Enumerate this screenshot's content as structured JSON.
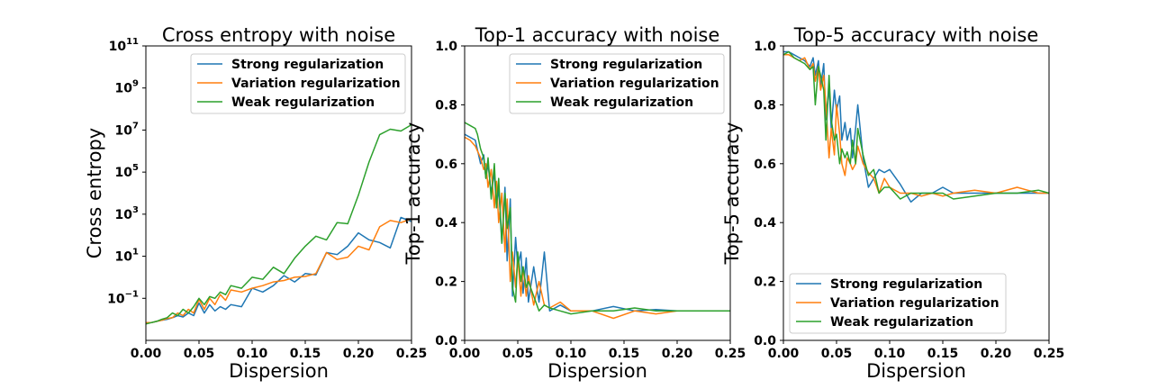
{
  "chart_data": [
    {
      "type": "line",
      "title": "Cross entropy with noise",
      "xlabel": "Dispersion",
      "ylabel": "Cross entropy",
      "xlim": [
        0,
        0.25
      ],
      "ylim": [
        0.001,
        100000000000
      ],
      "yscale": "log",
      "xticks": [
        "0.00",
        "0.05",
        "0.10",
        "0.15",
        "0.20",
        "0.25"
      ],
      "legend_loc": "upper right",
      "grid": false,
      "series": [
        {
          "name": "Strong regularization",
          "color": "#1f77b4",
          "x": [
            0,
            0.005,
            0.01,
            0.015,
            0.02,
            0.025,
            0.03,
            0.035,
            0.04,
            0.045,
            0.05,
            0.055,
            0.06,
            0.065,
            0.07,
            0.075,
            0.08,
            0.09,
            0.1,
            0.11,
            0.12,
            0.13,
            0.14,
            0.15,
            0.16,
            0.17,
            0.18,
            0.19,
            0.2,
            0.21,
            0.22,
            0.23,
            0.24,
            0.25
          ],
          "y": [
            0.007,
            0.007,
            0.008,
            0.009,
            0.01,
            0.012,
            0.015,
            0.013,
            0.02,
            0.015,
            0.06,
            0.02,
            0.05,
            0.025,
            0.04,
            0.03,
            0.05,
            0.04,
            0.3,
            0.2,
            0.4,
            1.2,
            0.6,
            1.5,
            1.3,
            15,
            12,
            30,
            130,
            60,
            45,
            25,
            700,
            450
          ]
        },
        {
          "name": "Variation regularization",
          "color": "#ff7f0e",
          "x": [
            0,
            0.005,
            0.01,
            0.015,
            0.02,
            0.025,
            0.03,
            0.035,
            0.04,
            0.045,
            0.05,
            0.055,
            0.06,
            0.065,
            0.07,
            0.075,
            0.08,
            0.09,
            0.1,
            0.11,
            0.12,
            0.13,
            0.14,
            0.15,
            0.16,
            0.17,
            0.18,
            0.19,
            0.2,
            0.21,
            0.22,
            0.23,
            0.24,
            0.25
          ],
          "y": [
            0.007,
            0.007,
            0.008,
            0.009,
            0.011,
            0.012,
            0.02,
            0.015,
            0.03,
            0.02,
            0.09,
            0.03,
            0.1,
            0.05,
            0.15,
            0.08,
            0.25,
            0.2,
            0.3,
            0.4,
            0.6,
            0.7,
            1,
            1.1,
            1.5,
            15,
            7,
            9,
            30,
            20,
            250,
            500,
            400,
            600
          ]
        },
        {
          "name": "Weak regularization",
          "color": "#2ca02c",
          "x": [
            0,
            0.005,
            0.01,
            0.015,
            0.02,
            0.025,
            0.03,
            0.035,
            0.04,
            0.045,
            0.05,
            0.055,
            0.06,
            0.065,
            0.07,
            0.075,
            0.08,
            0.09,
            0.1,
            0.11,
            0.12,
            0.13,
            0.14,
            0.15,
            0.16,
            0.17,
            0.18,
            0.19,
            0.2,
            0.21,
            0.22,
            0.23,
            0.24,
            0.25
          ],
          "y": [
            0.006,
            0.007,
            0.008,
            0.01,
            0.012,
            0.02,
            0.015,
            0.03,
            0.02,
            0.04,
            0.1,
            0.05,
            0.12,
            0.1,
            0.2,
            0.15,
            0.4,
            0.3,
            1,
            0.8,
            3,
            1.5,
            8,
            30,
            90,
            60,
            400,
            350,
            8000,
            300000,
            6000000,
            11000000,
            9000000,
            18000000
          ]
        }
      ]
    },
    {
      "type": "line",
      "title": "Top-1 accuracy with noise",
      "xlabel": "Dispersion",
      "ylabel": "Top-1 accuracy",
      "xlim": [
        0,
        0.25
      ],
      "ylim": [
        0,
        1
      ],
      "xticks": [
        "0.00",
        "0.05",
        "0.10",
        "0.15",
        "0.20",
        "0.25"
      ],
      "yticks": [
        "0.0",
        "0.2",
        "0.4",
        "0.6",
        "0.8",
        "1.0"
      ],
      "legend_loc": "upper right",
      "grid": false,
      "series": [
        {
          "name": "Strong regularization",
          "color": "#1f77b4",
          "x": [
            0,
            0.005,
            0.01,
            0.015,
            0.018,
            0.02,
            0.022,
            0.025,
            0.028,
            0.03,
            0.032,
            0.035,
            0.038,
            0.04,
            0.043,
            0.045,
            0.048,
            0.05,
            0.053,
            0.055,
            0.058,
            0.06,
            0.065,
            0.07,
            0.075,
            0.08,
            0.09,
            0.1,
            0.12,
            0.14,
            0.16,
            0.18,
            0.2,
            0.22,
            0.25
          ],
          "y": [
            0.7,
            0.69,
            0.68,
            0.6,
            0.63,
            0.55,
            0.6,
            0.5,
            0.57,
            0.45,
            0.52,
            0.33,
            0.52,
            0.27,
            0.48,
            0.15,
            0.35,
            0.25,
            0.3,
            0.16,
            0.28,
            0.13,
            0.25,
            0.13,
            0.3,
            0.1,
            0.12,
            0.1,
            0.1,
            0.115,
            0.1,
            0.105,
            0.1,
            0.1,
            0.1
          ]
        },
        {
          "name": "Variation regularization",
          "color": "#ff7f0e",
          "x": [
            0,
            0.005,
            0.01,
            0.015,
            0.018,
            0.02,
            0.022,
            0.025,
            0.028,
            0.03,
            0.032,
            0.035,
            0.038,
            0.04,
            0.043,
            0.045,
            0.048,
            0.05,
            0.053,
            0.055,
            0.058,
            0.06,
            0.065,
            0.07,
            0.075,
            0.08,
            0.09,
            0.1,
            0.12,
            0.14,
            0.16,
            0.18,
            0.2,
            0.22,
            0.25
          ],
          "y": [
            0.69,
            0.68,
            0.66,
            0.62,
            0.58,
            0.6,
            0.52,
            0.58,
            0.45,
            0.54,
            0.4,
            0.5,
            0.3,
            0.48,
            0.2,
            0.3,
            0.18,
            0.28,
            0.15,
            0.25,
            0.15,
            0.22,
            0.12,
            0.2,
            0.12,
            0.11,
            0.13,
            0.1,
            0.1,
            0.075,
            0.1,
            0.09,
            0.1,
            0.1,
            0.1
          ]
        },
        {
          "name": "Weak regularization",
          "color": "#2ca02c",
          "x": [
            0,
            0.005,
            0.01,
            0.012,
            0.015,
            0.018,
            0.02,
            0.022,
            0.025,
            0.028,
            0.03,
            0.032,
            0.035,
            0.038,
            0.04,
            0.043,
            0.045,
            0.048,
            0.05,
            0.053,
            0.055,
            0.058,
            0.06,
            0.065,
            0.07,
            0.075,
            0.08,
            0.09,
            0.1,
            0.12,
            0.14,
            0.16,
            0.18,
            0.2,
            0.22,
            0.25
          ],
          "y": [
            0.74,
            0.73,
            0.72,
            0.7,
            0.65,
            0.62,
            0.55,
            0.62,
            0.48,
            0.6,
            0.45,
            0.55,
            0.33,
            0.5,
            0.38,
            0.45,
            0.18,
            0.13,
            0.3,
            0.2,
            0.25,
            0.18,
            0.2,
            0.15,
            0.1,
            0.12,
            0.11,
            0.1,
            0.09,
            0.1,
            0.1,
            0.11,
            0.1,
            0.1,
            0.1,
            0.1
          ]
        }
      ]
    },
    {
      "type": "line",
      "title": "Top-5 accuracy with noise",
      "xlabel": "Dispersion",
      "ylabel": "Top-5 accuracy",
      "xlim": [
        0,
        0.25
      ],
      "ylim": [
        0,
        1
      ],
      "xticks": [
        "0.00",
        "0.05",
        "0.10",
        "0.15",
        "0.20",
        "0.25"
      ],
      "yticks": [
        "0.0",
        "0.2",
        "0.4",
        "0.6",
        "0.8",
        "1.0"
      ],
      "legend_loc": "lower left",
      "grid": false,
      "series": [
        {
          "name": "Strong regularization",
          "color": "#1f77b4",
          "x": [
            0,
            0.005,
            0.01,
            0.015,
            0.02,
            0.025,
            0.028,
            0.03,
            0.033,
            0.035,
            0.038,
            0.04,
            0.043,
            0.045,
            0.048,
            0.05,
            0.053,
            0.055,
            0.058,
            0.06,
            0.063,
            0.065,
            0.068,
            0.07,
            0.075,
            0.08,
            0.085,
            0.09,
            0.095,
            0.1,
            0.11,
            0.12,
            0.13,
            0.14,
            0.15,
            0.16,
            0.18,
            0.2,
            0.22,
            0.24,
            0.25
          ],
          "y": [
            0.98,
            0.98,
            0.97,
            0.96,
            0.95,
            0.93,
            0.96,
            0.9,
            0.95,
            0.86,
            0.94,
            0.75,
            0.86,
            0.72,
            0.85,
            0.78,
            0.83,
            0.68,
            0.74,
            0.68,
            0.72,
            0.62,
            0.72,
            0.8,
            0.62,
            0.52,
            0.55,
            0.58,
            0.57,
            0.58,
            0.53,
            0.47,
            0.5,
            0.5,
            0.52,
            0.5,
            0.5,
            0.5,
            0.5,
            0.5,
            0.5
          ]
        },
        {
          "name": "Variation regularization",
          "color": "#ff7f0e",
          "x": [
            0,
            0.005,
            0.01,
            0.015,
            0.02,
            0.025,
            0.028,
            0.03,
            0.033,
            0.035,
            0.038,
            0.04,
            0.043,
            0.045,
            0.048,
            0.05,
            0.053,
            0.055,
            0.058,
            0.06,
            0.063,
            0.065,
            0.068,
            0.07,
            0.075,
            0.08,
            0.085,
            0.09,
            0.095,
            0.1,
            0.11,
            0.12,
            0.13,
            0.14,
            0.15,
            0.16,
            0.18,
            0.2,
            0.22,
            0.24,
            0.25
          ],
          "y": [
            0.97,
            0.97,
            0.96,
            0.95,
            0.96,
            0.92,
            0.94,
            0.88,
            0.93,
            0.85,
            0.9,
            0.8,
            0.62,
            0.72,
            0.63,
            0.8,
            0.7,
            0.6,
            0.56,
            0.62,
            0.6,
            0.58,
            0.6,
            0.66,
            0.6,
            0.57,
            0.55,
            0.5,
            0.55,
            0.52,
            0.5,
            0.5,
            0.49,
            0.5,
            0.49,
            0.5,
            0.51,
            0.5,
            0.52,
            0.5,
            0.5
          ]
        },
        {
          "name": "Weak regularization",
          "color": "#2ca02c",
          "x": [
            0,
            0.005,
            0.01,
            0.015,
            0.02,
            0.025,
            0.028,
            0.03,
            0.033,
            0.035,
            0.038,
            0.04,
            0.043,
            0.045,
            0.048,
            0.05,
            0.053,
            0.055,
            0.058,
            0.06,
            0.063,
            0.065,
            0.068,
            0.07,
            0.075,
            0.08,
            0.085,
            0.09,
            0.095,
            0.1,
            0.11,
            0.12,
            0.13,
            0.14,
            0.15,
            0.16,
            0.18,
            0.2,
            0.22,
            0.24,
            0.25
          ],
          "y": [
            0.97,
            0.98,
            0.96,
            0.95,
            0.94,
            0.92,
            0.93,
            0.8,
            0.93,
            0.9,
            0.85,
            0.68,
            0.9,
            0.75,
            0.68,
            0.7,
            0.6,
            0.65,
            0.62,
            0.64,
            0.6,
            0.68,
            0.6,
            0.72,
            0.63,
            0.56,
            0.58,
            0.5,
            0.52,
            0.52,
            0.48,
            0.5,
            0.5,
            0.5,
            0.5,
            0.48,
            0.49,
            0.5,
            0.5,
            0.51,
            0.5
          ]
        }
      ]
    }
  ]
}
